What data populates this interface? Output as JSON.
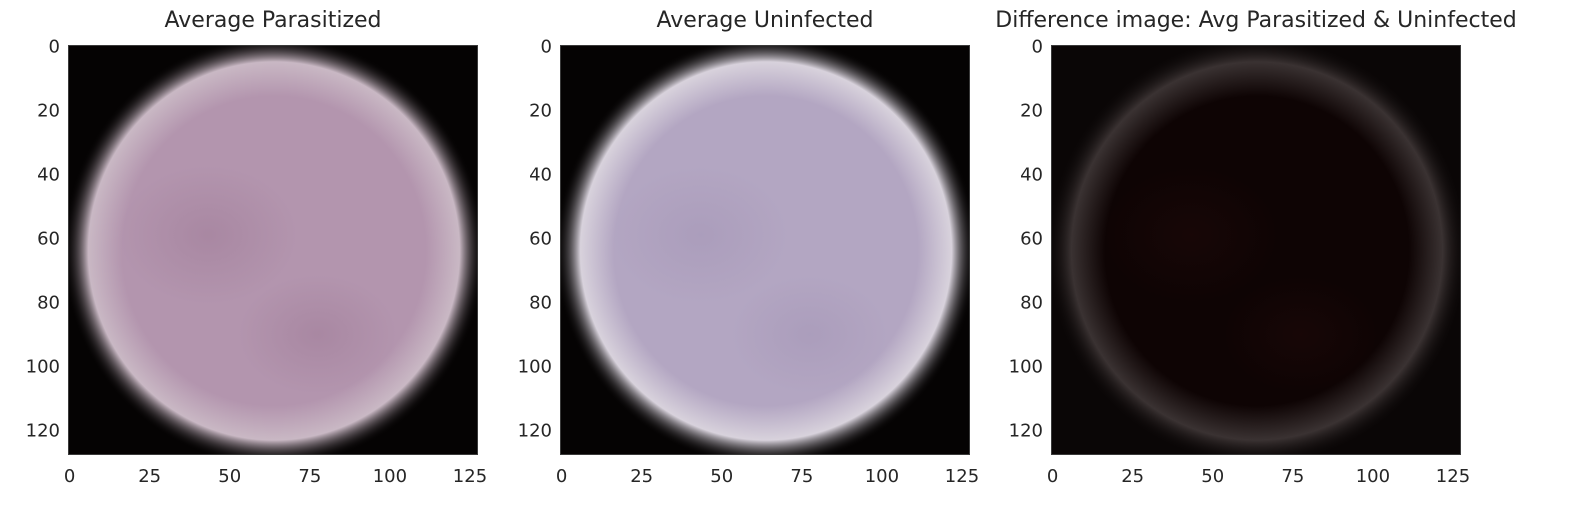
{
  "figure": {
    "panels": [
      {
        "title": "Average Parasitized",
        "image_desc": "averaged cell image",
        "colors": {
          "background": "#050303",
          "rim": "#c9b8c4",
          "body": "#b395ae",
          "spot": "#a6849f"
        }
      },
      {
        "title": "Average Uninfected",
        "image_desc": "averaged cell image",
        "colors": {
          "background": "#050303",
          "rim": "#d8d2dc",
          "body": "#b3a6c2",
          "spot": "#a99bba"
        }
      },
      {
        "title": "Difference image: Avg Parasitized & Uninfected",
        "image_desc": "difference image",
        "colors": {
          "background": "#0a0606",
          "rim": "#3a3232",
          "body": "#0e0404",
          "spot": "#1a0707"
        }
      }
    ],
    "y_ticks": [
      "0",
      "20",
      "40",
      "60",
      "80",
      "100",
      "120"
    ],
    "y_tick_values": [
      0,
      20,
      40,
      60,
      80,
      100,
      120
    ],
    "x_ticks": [
      "0",
      "25",
      "50",
      "75",
      "100",
      "125"
    ],
    "x_tick_values": [
      0,
      25,
      50,
      75,
      100,
      125
    ],
    "image_extent": [
      -0.5,
      127.5
    ]
  }
}
